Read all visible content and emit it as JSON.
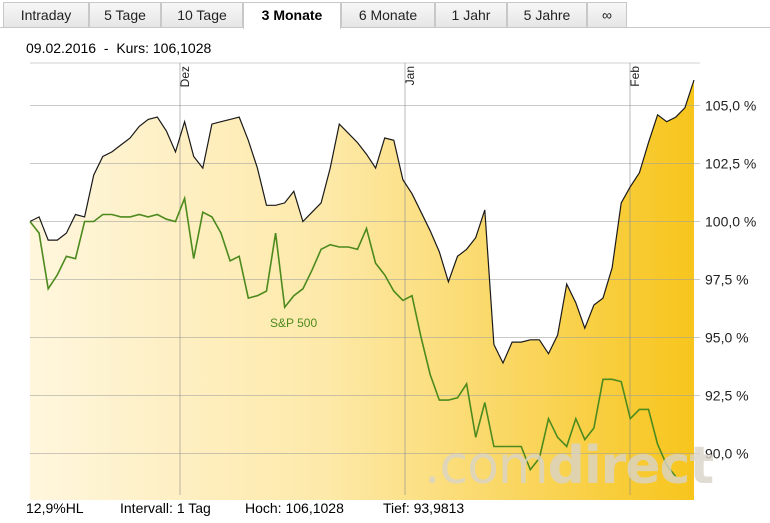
{
  "tabs": [
    {
      "label": "Intraday",
      "active": false
    },
    {
      "label": "5 Tage",
      "active": false
    },
    {
      "label": "10 Tage",
      "active": false
    },
    {
      "label": "3 Monate",
      "active": true
    },
    {
      "label": "6 Monate",
      "active": false
    },
    {
      "label": "1 Jahr",
      "active": false
    },
    {
      "label": "5 Jahre",
      "active": false
    },
    {
      "label": "∞",
      "active": false
    }
  ],
  "quote": {
    "date": "09.02.2016",
    "separator": "-",
    "price_label": "Kurs:",
    "price": "106,1028"
  },
  "footer": {
    "volatility": "12,9%HL",
    "interval_label": "Intervall:",
    "interval": "1 Tag",
    "high_label": "Hoch:",
    "high": "106,1028",
    "low_label": "Tief:",
    "low": "93,9813"
  },
  "watermark": {
    "light": ".com",
    "bold": "direct"
  },
  "colors": {
    "area_dark": "#f7c51c",
    "area_light": "#fff4d6",
    "benchmark": "#4d8a1e",
    "line": "#1a1a1a",
    "grid": "#bdbdbd"
  },
  "chart_data": {
    "type": "area",
    "x_ticks": [
      "Dez",
      "Jan",
      "Feb"
    ],
    "ylim": [
      88.0,
      106.5
    ],
    "y_ticks": [
      {
        "value": 90.0,
        "label": "90,0 %"
      },
      {
        "value": 92.5,
        "label": "92,5 %"
      },
      {
        "value": 95.0,
        "label": "95,0 %"
      },
      {
        "value": 97.5,
        "label": "97,5 %"
      },
      {
        "value": 100.0,
        "label": "100,0 %"
      },
      {
        "value": 102.5,
        "label": "102,5 %"
      },
      {
        "value": 105.0,
        "label": "105,0 %"
      }
    ],
    "grid": true,
    "series": [
      {
        "values": [
          100.0,
          100.2,
          99.2,
          99.2,
          99.5,
          100.3,
          100.2,
          102.0,
          102.8,
          103.0,
          103.3,
          103.6,
          104.1,
          104.4,
          104.5,
          103.9,
          103.0,
          104.3,
          102.8,
          102.3,
          104.2,
          104.3,
          104.4,
          104.5,
          103.5,
          102.3,
          100.7,
          100.7,
          100.8,
          101.3,
          100.0,
          100.4,
          100.8,
          102.3,
          104.2,
          103.8,
          103.4,
          102.9,
          102.3,
          103.6,
          103.5,
          101.8,
          101.2,
          100.4,
          99.6,
          98.7,
          97.4,
          98.5,
          98.8,
          99.3,
          100.5,
          94.7,
          93.9,
          94.8,
          94.8,
          94.9,
          94.9,
          94.3,
          95.1,
          97.3,
          96.5,
          95.4,
          96.4,
          96.7,
          98.0,
          100.8,
          101.5,
          102.1,
          103.4,
          104.6,
          104.3,
          104.5,
          104.9,
          106.1
        ]
      },
      {
        "name": "S&P 500",
        "values": [
          100.0,
          99.5,
          97.1,
          97.7,
          98.5,
          98.4,
          100.0,
          100.0,
          100.3,
          100.3,
          100.2,
          100.2,
          100.3,
          100.2,
          100.3,
          100.1,
          100.0,
          101.0,
          98.4,
          100.4,
          100.2,
          99.5,
          98.3,
          98.5,
          96.7,
          96.8,
          97.0,
          99.5,
          96.3,
          96.8,
          97.1,
          97.9,
          98.8,
          99.0,
          98.9,
          98.9,
          98.8,
          99.7,
          98.2,
          97.7,
          97.0,
          96.6,
          96.8,
          95.0,
          93.4,
          92.3,
          92.3,
          92.4,
          93.0,
          90.7,
          92.2,
          90.3,
          90.3,
          90.3,
          90.3,
          89.3,
          89.8,
          91.5,
          90.7,
          90.3,
          91.5,
          90.6,
          91.1,
          93.2,
          93.2,
          93.1,
          91.5,
          91.9,
          91.9,
          90.4,
          89.5,
          89.0
        ]
      }
    ]
  }
}
